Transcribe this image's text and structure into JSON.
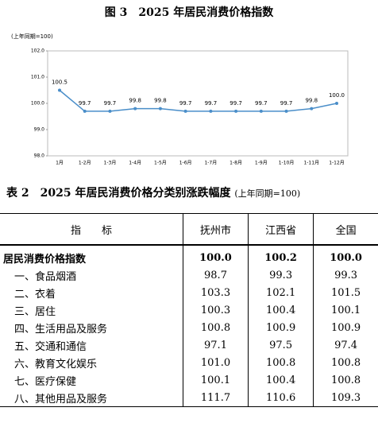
{
  "chart_data": {
    "type": "line",
    "title": "图 3　2025 年居民消费价格指数",
    "y_label": "(上年同期=100)",
    "categories": [
      "1月",
      "1-2月",
      "1-3月",
      "1-4月",
      "1-5月",
      "1-6月",
      "1-7月",
      "1-8月",
      "1-9月",
      "1-10月",
      "1-11月",
      "1-12月"
    ],
    "values": [
      100.5,
      99.7,
      99.7,
      99.8,
      99.8,
      99.7,
      99.7,
      99.7,
      99.7,
      99.7,
      99.8,
      100.0
    ],
    "value_labels": [
      "100.5",
      "99.7",
      "99.7",
      "99.8",
      "99.8",
      "99.7",
      "99.7",
      "99.7",
      "99.7",
      "99.7",
      "99.8",
      "100.0"
    ],
    "color": "#4a8ec9",
    "ylim": [
      98,
      102
    ],
    "yticks": [
      {
        "value": 98,
        "label": "98.0"
      },
      {
        "value": 99,
        "label": "99.0"
      },
      {
        "value": 100,
        "label": "100.0"
      },
      {
        "value": 101,
        "label": "101.0"
      },
      {
        "value": 102,
        "label": "102.0"
      }
    ],
    "grid": false
  },
  "table": {
    "title": "表 2　2025 年居民消费价格分类别涨跌幅度",
    "subtitle": "(上年同期=100)",
    "header": [
      "指　　标",
      "抚州市",
      "江西省",
      "全国"
    ],
    "rows": [
      [
        "居民消费价格指数",
        "100.0",
        "100.2",
        "100.0"
      ],
      [
        "一、食品烟酒",
        "98.7",
        "99.3",
        "99.3"
      ],
      [
        "二、衣着",
        "103.3",
        "102.1",
        "101.5"
      ],
      [
        "三、居住",
        "100.3",
        "100.4",
        "100.1"
      ],
      [
        "四、生活用品及服务",
        "100.8",
        "100.9",
        "100.9"
      ],
      [
        "五、交通和通信",
        "97.1",
        "97.5",
        "97.4"
      ],
      [
        "六、教育文化娱乐",
        "101.0",
        "100.8",
        "100.8"
      ],
      [
        "七、医疗保健",
        "100.1",
        "100.4",
        "100.8"
      ],
      [
        "八、其他用品及服务",
        "111.7",
        "110.6",
        "109.3"
      ]
    ]
  }
}
